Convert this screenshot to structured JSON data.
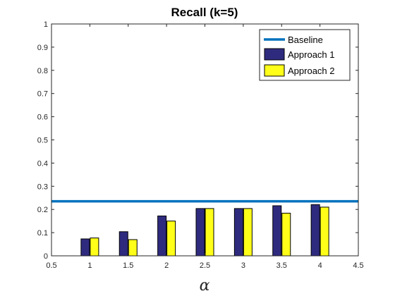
{
  "chart_data": {
    "type": "bar",
    "title": "Recall (k=5)",
    "xlabel": "α",
    "ylabel": "",
    "xlim": [
      0.5,
      4.5
    ],
    "ylim": [
      0,
      1
    ],
    "xticks": [
      "0.5",
      "1",
      "1.5",
      "2",
      "2.5",
      "3",
      "3.5",
      "4",
      "4.5"
    ],
    "yticks": [
      "0",
      "0.1",
      "0.2",
      "0.3",
      "0.4",
      "0.5",
      "0.6",
      "0.7",
      "0.8",
      "0.9",
      "1"
    ],
    "categories": [
      1,
      1.5,
      2,
      2.5,
      3,
      3.5,
      4
    ],
    "baseline": {
      "name": "Baseline",
      "value": 0.235,
      "color": "#0072BD"
    },
    "series": [
      {
        "name": "Approach 1",
        "color": "#2E2B7F",
        "values": [
          0.073,
          0.104,
          0.172,
          0.204,
          0.204,
          0.216,
          0.221
        ]
      },
      {
        "name": "Approach 2",
        "color": "#FFFF19",
        "values": [
          0.077,
          0.07,
          0.15,
          0.204,
          0.204,
          0.184,
          0.21
        ]
      }
    ],
    "grid": false,
    "legend_position": "top-right"
  }
}
